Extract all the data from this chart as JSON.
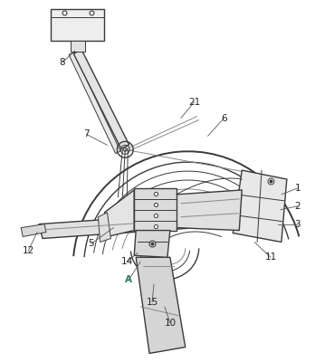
{
  "bg_color": "#ffffff",
  "line_color": "#3a3a3a",
  "light_line_color": "#888888",
  "gray_fill": "#e8e8e8",
  "dark_fill": "#d0d0d0",
  "figsize": [
    3.48,
    4.0
  ],
  "dpi": 100
}
